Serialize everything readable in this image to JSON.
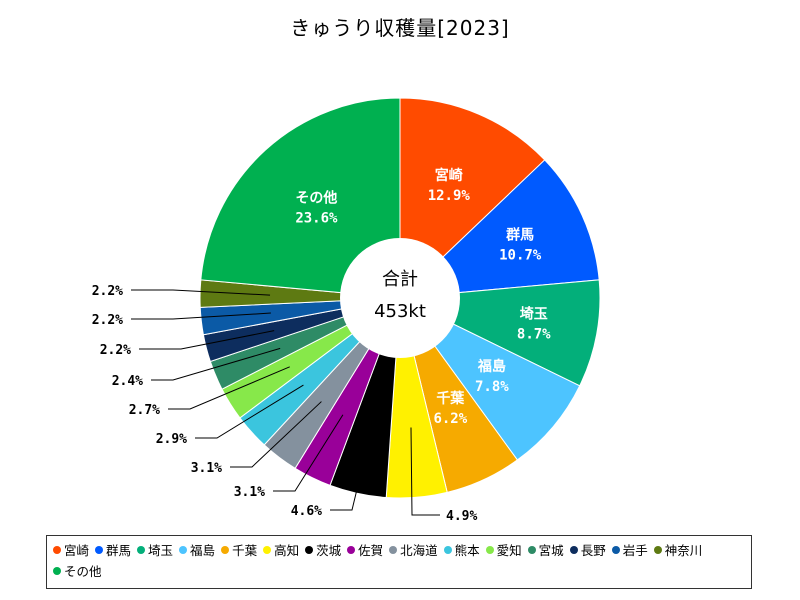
{
  "chart_data": {
    "type": "pie",
    "title": "きゅうり収穫量[2023]",
    "center_label": "合計",
    "center_value": "453kt",
    "slices": [
      {
        "name": "宮崎",
        "value": 12.9,
        "label": "12.9%",
        "color": "#ff4b00"
      },
      {
        "name": "群馬",
        "value": 10.7,
        "label": "10.7%",
        "color": "#005aff"
      },
      {
        "name": "埼玉",
        "value": 8.7,
        "label": "8.7%",
        "color": "#03af7a"
      },
      {
        "name": "福島",
        "value": 7.8,
        "label": "7.8%",
        "color": "#4dc4ff"
      },
      {
        "name": "千葉",
        "value": 6.2,
        "label": "6.2%",
        "color": "#f6aa00"
      },
      {
        "name": "高知",
        "value": 4.9,
        "label": "4.9%",
        "color": "#fff100"
      },
      {
        "name": "茨城",
        "value": 4.6,
        "label": "4.6%",
        "color": "#000000"
      },
      {
        "name": "佐賀",
        "value": 3.1,
        "label": "3.1%",
        "color": "#990099"
      },
      {
        "name": "北海道",
        "value": 3.1,
        "label": "3.1%",
        "color": "#84919e"
      },
      {
        "name": "熊本",
        "value": 2.9,
        "label": "2.9%",
        "color": "#3bc5de"
      },
      {
        "name": "愛知",
        "value": 2.7,
        "label": "2.7%",
        "color": "#87e84a"
      },
      {
        "name": "宮城",
        "value": 2.4,
        "label": "2.4%",
        "color": "#2e8b66"
      },
      {
        "name": "長野",
        "value": 2.2,
        "label": "2.2%",
        "color": "#0d2d5e"
      },
      {
        "name": "岩手",
        "value": 2.2,
        "label": "2.2%",
        "color": "#0b5aa6"
      },
      {
        "name": "神奈川",
        "value": 2.2,
        "label": "2.2%",
        "color": "#5e7a12"
      },
      {
        "name": "その他",
        "value": 23.6,
        "label": "23.6%",
        "color": "#00b050"
      }
    ]
  }
}
